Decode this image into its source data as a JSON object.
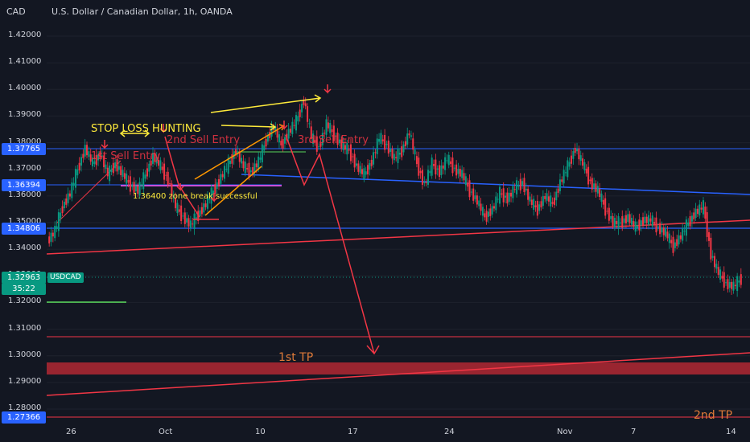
{
  "header": {
    "currency": "CAD",
    "symbol_title": "U.S. Dollar / Canadian Dollar, 1h, OANDA"
  },
  "ticker": {
    "name": "USDCAD",
    "price": "1.32963",
    "countdown": "35:22"
  },
  "chart_data": {
    "type": "line",
    "title": "U.S. Dollar / Canadian Dollar, 1h, OANDA",
    "ylim": [
      1.2705,
      1.4305
    ],
    "y_ticks": [
      "1.42000",
      "1.41000",
      "1.40000",
      "1.39000",
      "1.38000",
      "1.37000",
      "1.36000",
      "1.35000",
      "1.34000",
      "1.33000",
      "1.32000",
      "1.31000",
      "1.30000",
      "1.29000",
      "1.28000"
    ],
    "x_ticks": [
      "26",
      "Oct",
      "10",
      "17",
      "24",
      "Nov",
      "7",
      "14"
    ],
    "price_series": [
      1.343,
      1.347,
      1.356,
      1.361,
      1.37,
      1.378,
      1.372,
      1.376,
      1.368,
      1.372,
      1.368,
      1.364,
      1.362,
      1.368,
      1.375,
      1.371,
      1.366,
      1.356,
      1.352,
      1.349,
      1.353,
      1.357,
      1.362,
      1.367,
      1.372,
      1.377,
      1.371,
      1.369,
      1.373,
      1.381,
      1.386,
      1.379,
      1.384,
      1.388,
      1.396,
      1.382,
      1.378,
      1.387,
      1.383,
      1.379,
      1.377,
      1.371,
      1.368,
      1.373,
      1.382,
      1.379,
      1.374,
      1.377,
      1.384,
      1.372,
      1.364,
      1.372,
      1.369,
      1.374,
      1.37,
      1.368,
      1.362,
      1.358,
      1.352,
      1.355,
      1.361,
      1.359,
      1.363,
      1.365,
      1.358,
      1.355,
      1.36,
      1.357,
      1.365,
      1.371,
      1.378,
      1.372,
      1.365,
      1.362,
      1.355,
      1.35,
      1.35,
      1.352,
      1.348,
      1.351,
      1.351,
      1.348,
      1.346,
      1.341,
      1.345,
      1.35,
      1.354,
      1.356,
      1.338,
      1.331,
      1.327,
      1.326,
      1.329
    ],
    "price_levels": [
      {
        "label": "1.37765",
        "color": "#2962ff"
      },
      {
        "label": "1.36394",
        "color": "#2962ff"
      },
      {
        "label": "1.34806",
        "color": "#2962ff"
      },
      {
        "label": "1.27366",
        "color": "#2962ff"
      }
    ],
    "annotations": {
      "stop_loss": "STOP LOSS HUNTING",
      "sell1": "1st Sell Entry",
      "sell2": "2nd Sell Entry",
      "sell3": "3rd Sell Entry",
      "zone": "1.36400 zone break successful",
      "tp1": "1st TP",
      "tp2": "2nd TP"
    }
  }
}
